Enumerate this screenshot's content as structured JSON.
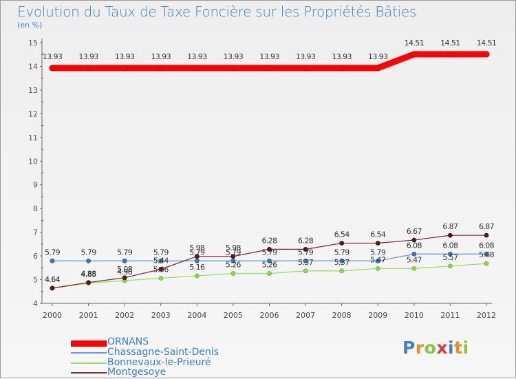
{
  "title": "Evolution du Taux de Taxe Foncière sur les Propriétés Bâties",
  "subtitle": "(en %)",
  "logo": {
    "text": "Proxiti",
    "letter_colors": [
      "#3b7fd6",
      "#f08a24",
      "#8bc53f",
      "#e23a3a",
      "#3b7fd6",
      "#f08a24",
      "#8bc53f"
    ]
  },
  "chart_data": {
    "type": "line",
    "x": [
      2000,
      2001,
      2002,
      2003,
      2004,
      2005,
      2006,
      2007,
      2008,
      2009,
      2010,
      2011,
      2012
    ],
    "ylim": [
      4,
      15
    ],
    "yticks": [
      4,
      5,
      6,
      7,
      8,
      9,
      10,
      11,
      12,
      13,
      14,
      15
    ],
    "grid": false,
    "series": [
      {
        "name": "ORNANS",
        "color": "#ff0000",
        "values": [
          13.93,
          13.93,
          13.93,
          13.93,
          13.93,
          13.93,
          13.93,
          13.93,
          13.93,
          13.93,
          14.51,
          14.51,
          14.51
        ]
      },
      {
        "name": "Chassagne-Saint-Denis",
        "color": "#6b9bd1",
        "values": [
          5.79,
          5.79,
          5.79,
          5.79,
          5.79,
          5.79,
          5.79,
          5.79,
          5.79,
          5.79,
          6.08,
          6.08,
          6.08
        ]
      },
      {
        "name": "Bonnevaux-le-Prieuré",
        "color": "#99e05e",
        "values": [
          4.64,
          4.85,
          4.96,
          5.06,
          5.16,
          5.26,
          5.26,
          5.37,
          5.37,
          5.47,
          5.47,
          5.57,
          5.68
        ]
      },
      {
        "name": "Montgesoye",
        "color": "#7a3333",
        "values": [
          4.64,
          4.88,
          5.08,
          5.44,
          5.98,
          5.98,
          6.28,
          6.28,
          6.54,
          6.54,
          6.67,
          6.87,
          6.87
        ]
      }
    ],
    "data_labels": [
      [
        "13.93",
        "13.93",
        "13.93",
        "13.93",
        "13.93",
        "13.93",
        "13.93",
        "13.93",
        "13.93",
        "13.93",
        "14.51",
        "14.51",
        "14.51"
      ],
      [
        "5.79",
        "5.79",
        "5.79",
        "5.79",
        "5.79",
        "5.79",
        "5.79",
        "5.79",
        "5.79",
        "5.79",
        "6.08",
        "6.08",
        "6.08"
      ],
      [
        "4.64",
        "4.85",
        "4.96",
        "5.06",
        "5.16",
        "5.26",
        "5.26",
        "5.37",
        "5.37",
        "5.47",
        "5.47",
        "5.57",
        "5.68"
      ],
      [
        "4.64",
        "4.88",
        "5.08",
        "5.44",
        "5.98",
        "5.98",
        "6.28",
        "6.28",
        "6.54",
        "6.54",
        "6.67",
        "6.87",
        "6.87"
      ]
    ]
  },
  "legend": [
    {
      "label": "ORNANS",
      "color": "#ff0000"
    },
    {
      "label": "Chassagne-Saint-Denis",
      "color": "#6b9bd1"
    },
    {
      "label": "Bonnevaux-le-Prieuré",
      "color": "#99e05e"
    },
    {
      "label": "Montgesoye",
      "color": "#7a3333"
    }
  ]
}
